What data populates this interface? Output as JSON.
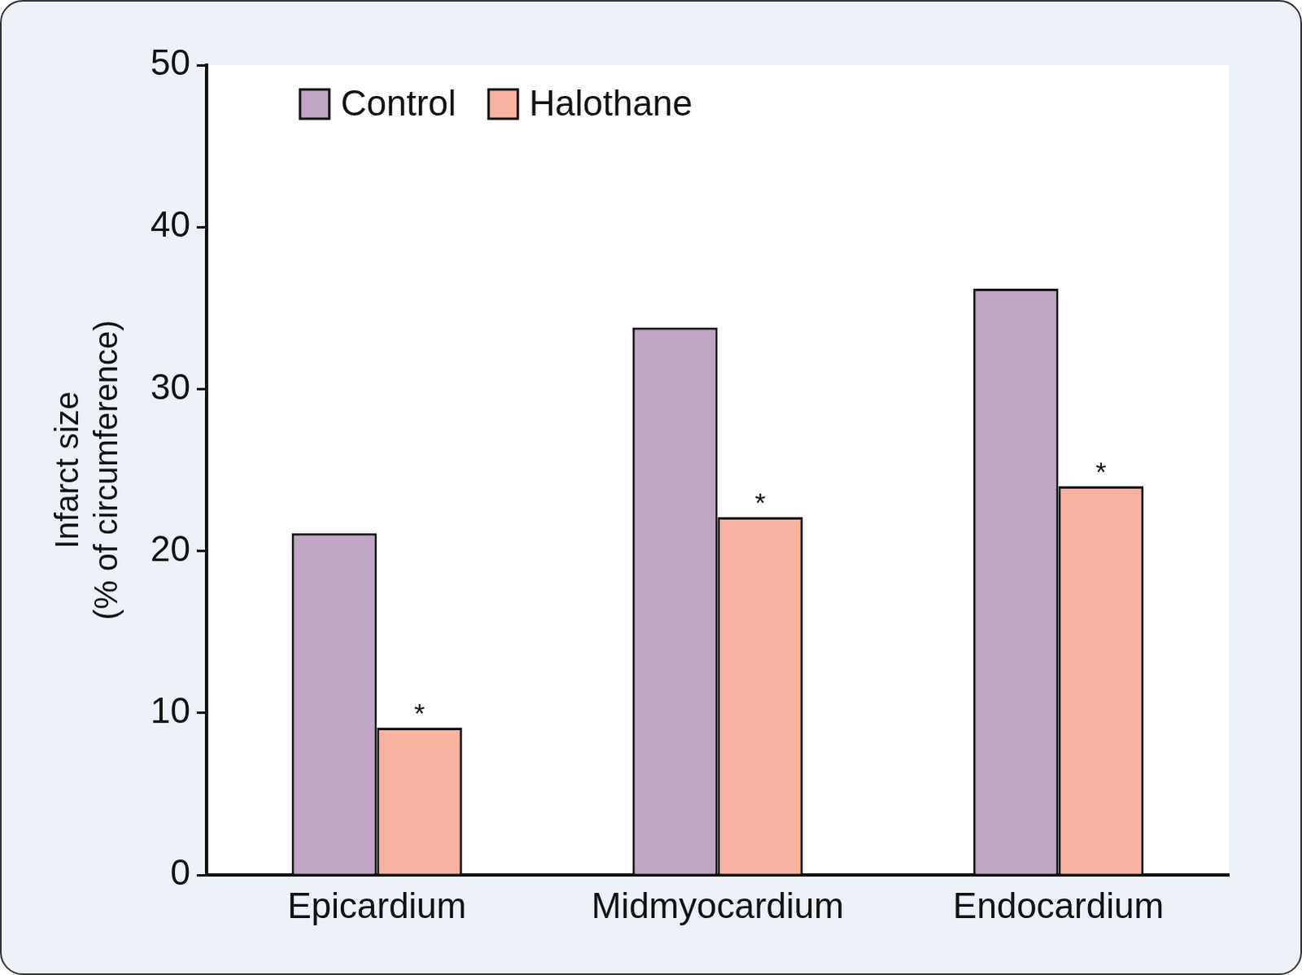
{
  "chart_data": {
    "type": "bar",
    "y_label": [
      "Infarct size",
      "(% of circumference)"
    ],
    "categories": [
      "Epicardium",
      "Midmyocardium",
      "Endocardium"
    ],
    "series": [
      {
        "name": "Control",
        "color": "#bfa7c3",
        "values": [
          21.1,
          33.8,
          36.2
        ]
      },
      {
        "name": "Halothane",
        "color": "#f9b3a0",
        "values": [
          9.1,
          22.1,
          24.0
        ]
      }
    ],
    "annotations": [
      {
        "text": "*",
        "category": "Epicardium",
        "series": "Halothane"
      },
      {
        "text": "*",
        "category": "Midmyocardium",
        "series": "Halothane"
      },
      {
        "text": "*",
        "category": "Endocardium",
        "series": "Halothane"
      }
    ],
    "ylim": [
      0,
      50
    ],
    "yticks": [
      0,
      10,
      20,
      30,
      40,
      50
    ],
    "grid": false,
    "legend": "upper left"
  }
}
